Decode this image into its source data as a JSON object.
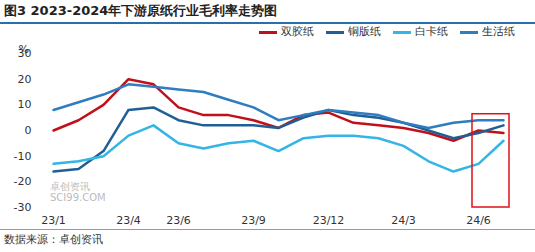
{
  "chart_data": {
    "type": "line",
    "title": "图3 2023-2024年下游原纸行业毛利率走势图",
    "y_label": "%",
    "source": "数据来源：卓创资讯",
    "annotations": [
      "卓创资讯",
      "SCI99.COM"
    ],
    "categories": [
      "23/1",
      null,
      null,
      "23/4",
      null,
      "23/6",
      null,
      null,
      "23/9",
      null,
      null,
      "23/12",
      null,
      null,
      "24/3",
      null,
      null,
      "24/6",
      null
    ],
    "series": [
      {
        "name": "双胶纸",
        "color": "#c0101a",
        "values": [
          0,
          4,
          10,
          20,
          18,
          9,
          6,
          6,
          4,
          1,
          6,
          7,
          3,
          2,
          1,
          -1,
          -4,
          0,
          -1
        ]
      },
      {
        "name": "铜版纸",
        "color": "#1f5f96",
        "values": [
          -16,
          -15,
          -8,
          8,
          9,
          4,
          2,
          2,
          2,
          1,
          5,
          8,
          6,
          5,
          3,
          0,
          -3,
          -1,
          2
        ]
      },
      {
        "name": "白卡纸",
        "color": "#33b5e5",
        "values": [
          -13,
          -12,
          -10,
          -2,
          2,
          -5,
          -7,
          -5,
          -4,
          -8,
          -3,
          -2,
          -2,
          -3,
          -6,
          -12,
          -16,
          -13,
          -4
        ]
      },
      {
        "name": "生活纸",
        "color": "#2e7dc0",
        "values": [
          8,
          11,
          14,
          18,
          17,
          16,
          15,
          12,
          9,
          4,
          6,
          8,
          7,
          6,
          3,
          1,
          3,
          4,
          4
        ]
      }
    ],
    "ylim": [
      -30,
      30
    ],
    "yticks": [
      -30,
      -20,
      -10,
      0,
      10,
      20,
      30
    ],
    "grid": false,
    "legend": "top-right"
  }
}
